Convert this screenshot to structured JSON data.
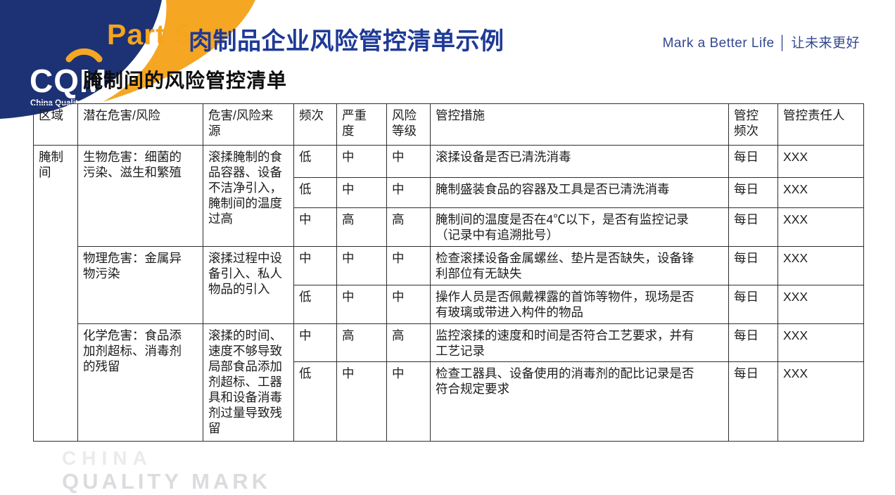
{
  "header": {
    "logo_text": "CQM",
    "logo_subtext": "China Quality Mark",
    "part_label": "Part 5",
    "title": "肉制品企业风险管控清单示例",
    "tagline": "Mark a Better Life │ 让未来更好"
  },
  "subtitle": "腌制间的风险管控清单",
  "table": {
    "columns": [
      "区域",
      "潜在危害/风险",
      "危害/风险来\n源",
      "频次",
      "严重\n度",
      "风险\n等级",
      "管控措施",
      "管控\n频次",
      "管控责任人"
    ],
    "area": "腌制间",
    "groups": [
      {
        "hazard": "生物危害：细菌的\n污染、滋生和繁殖",
        "source": "滚揉腌制的食\n品容器、设备\n不洁净引入，\n腌制间的温度\n过高",
        "rows": [
          {
            "freq": "低",
            "severity": "中",
            "risk": "中",
            "measure": "滚揉设备是否已清洗消毒",
            "ctrl_freq": "每日",
            "owner": "XXX"
          },
          {
            "freq": "低",
            "severity": "中",
            "risk": "中",
            "measure": "腌制盛装食品的容器及工具是否已清洗消毒",
            "ctrl_freq": "每日",
            "owner": "XXX"
          },
          {
            "freq": "中",
            "severity": "高",
            "risk": "高",
            "measure": "腌制间的温度是否在4℃以下，是否有监控记录\n（记录中有追溯批号）",
            "ctrl_freq": "每日",
            "owner": "XXX"
          }
        ]
      },
      {
        "hazard": "物理危害：金属异\n物污染",
        "source": "滚揉过程中设\n备引入、私人\n物品的引入",
        "rows": [
          {
            "freq": "中",
            "severity": "中",
            "risk": "中",
            "measure": "检查滚揉设备金属螺丝、垫片是否缺失，设备锋\n利部位有无缺失",
            "ctrl_freq": "每日",
            "owner": "XXX"
          },
          {
            "freq": "低",
            "severity": "中",
            "risk": "中",
            "measure": "操作人员是否佩戴裸露的首饰等物件，现场是否\n有玻璃或带进入构件的物品",
            "ctrl_freq": "每日",
            "owner": "XXX"
          }
        ]
      },
      {
        "hazard": "化学危害：食品添\n加剂超标、消毒剂\n的残留",
        "source": "滚揉的时间、\n速度不够导致\n局部食品添加\n剂超标、工器\n具和设备消毒\n剂过量导致残\n留",
        "rows": [
          {
            "freq": "中",
            "severity": "高",
            "risk": "高",
            "measure": "监控滚揉的速度和时间是否符合工艺要求，并有\n工艺记录",
            "ctrl_freq": "每日",
            "owner": "XXX"
          },
          {
            "freq": "低",
            "severity": "中",
            "risk": "中",
            "measure": "检查工器具、设备使用的消毒剂的配比记录是否\n符合规定要求",
            "ctrl_freq": "每日",
            "owner": "XXX"
          }
        ]
      }
    ]
  },
  "watermark": {
    "line1": "CHINA",
    "line2": "QUALITY MARK"
  },
  "colors": {
    "navy": "#1d3274",
    "orange": "#f5a623",
    "title_blue": "#1e3a96",
    "border": "#2e2e2e"
  }
}
